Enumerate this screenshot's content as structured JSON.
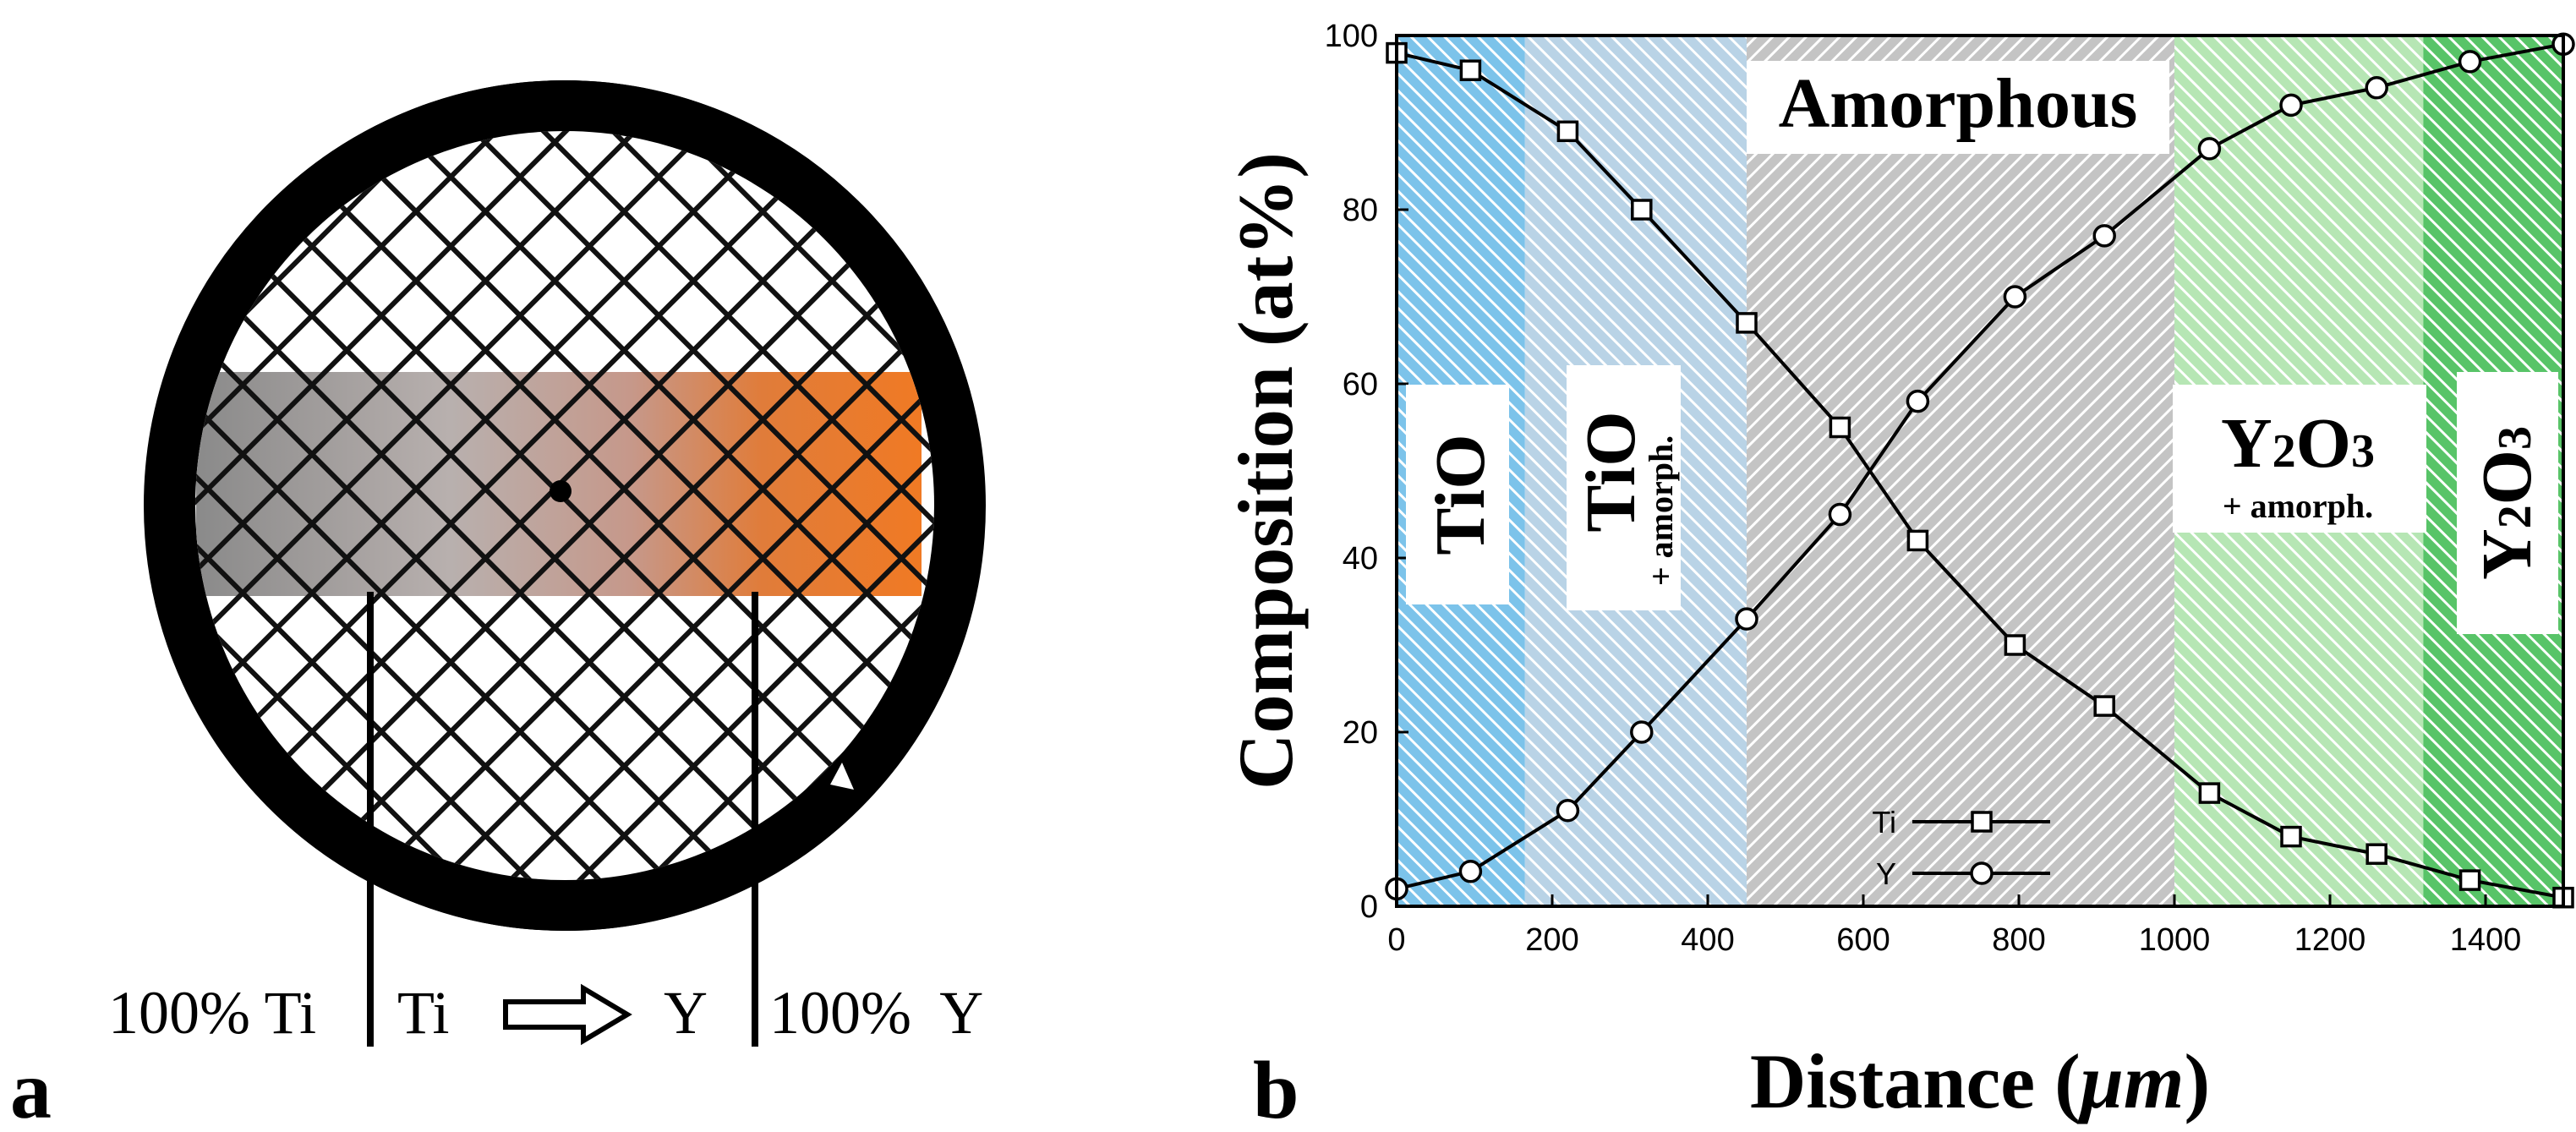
{
  "panel_a": {
    "label": "a",
    "bottom_text": {
      "left": "100% Ti",
      "from": "Ti",
      "to": "Y",
      "right": "100%  Y"
    },
    "colors": {
      "ti_end": "#8a8a8a",
      "mid": "#c8a9a0",
      "y_end": "#e8782a",
      "grid_line": "#111111",
      "rim": "#000000"
    }
  },
  "panel_b": {
    "label": "b",
    "regions": [
      {
        "name": "TiO",
        "subtitle": "",
        "range": [
          0,
          165
        ],
        "color": "#7cc3ea"
      },
      {
        "name": "TiO",
        "subtitle": "+ amorph.",
        "range": [
          165,
          450
        ],
        "color": "#b9d3e6"
      },
      {
        "name": "Amorphous",
        "subtitle": "",
        "range": [
          450,
          1000
        ],
        "color": "#c4c4c4"
      },
      {
        "name": "Y2O3",
        "subtitle": "+ amorph.",
        "range": [
          1000,
          1320
        ],
        "color": "#b6e6b4"
      },
      {
        "name": "Y2O3",
        "subtitle": "",
        "range": [
          1320,
          1500
        ],
        "color": "#58c468"
      }
    ]
  },
  "chart_data": {
    "type": "line",
    "title": "",
    "xlabel": "Distance (μm)",
    "ylabel": "Composition (at%)",
    "xlim": [
      0,
      1500
    ],
    "ylim": [
      0,
      100
    ],
    "xticks": [
      0,
      200,
      400,
      600,
      800,
      1000,
      1200,
      1400
    ],
    "yticks": [
      0,
      20,
      40,
      60,
      80,
      100
    ],
    "legend_position": "bottom-center",
    "series": [
      {
        "name": "Ti",
        "marker": "square",
        "x": [
          0,
          95,
          220,
          315,
          450,
          570,
          670,
          795,
          910,
          1045,
          1150,
          1260,
          1380,
          1500
        ],
        "y": [
          98,
          96,
          89,
          80,
          67,
          55,
          42,
          30,
          23,
          13,
          8,
          6,
          3,
          1
        ]
      },
      {
        "name": "Y",
        "marker": "circle",
        "x": [
          0,
          95,
          220,
          315,
          450,
          570,
          670,
          795,
          910,
          1045,
          1150,
          1260,
          1380,
          1500
        ],
        "y": [
          2,
          4,
          11,
          20,
          33,
          45,
          58,
          70,
          77,
          87,
          92,
          94,
          97,
          99
        ]
      }
    ]
  }
}
